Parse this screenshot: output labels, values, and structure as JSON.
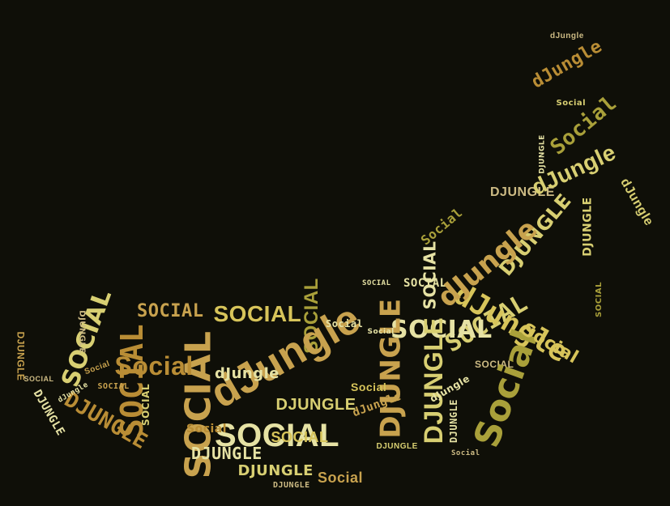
{
  "background": "#0f0f08",
  "palette": [
    "#c8a24e",
    "#d8cf72",
    "#e6e2a4",
    "#a9a03a",
    "#b98d35",
    "#d7c45a",
    "#8f9a2e",
    "#cdbb84"
  ],
  "words": [
    {
      "text": "SOCIAL",
      "size": 44,
      "rot": -90,
      "color": 0
    },
    {
      "text": "SOCIAL",
      "size": 40,
      "rot": 0,
      "color": 2
    },
    {
      "text": "SOCIAL",
      "size": 38,
      "rot": -90,
      "color": 4
    },
    {
      "text": "SOCIAL",
      "size": 30,
      "rot": -70,
      "color": 1
    },
    {
      "text": "SOCIAL",
      "size": 28,
      "rot": 0,
      "color": 5
    },
    {
      "text": "SOCIAL",
      "size": 30,
      "rot": -30,
      "color": 1
    },
    {
      "text": "SOCIAL",
      "size": 30,
      "rot": 0,
      "color": 2
    },
    {
      "text": "SOCIAL",
      "size": 24,
      "rot": -90,
      "color": 3
    },
    {
      "text": "SOCIAL",
      "size": 22,
      "rot": 0,
      "color": 0
    },
    {
      "text": "SOCIAL",
      "size": 20,
      "rot": -90,
      "color": 2
    },
    {
      "text": "SOCIAL",
      "size": 18,
      "rot": 0,
      "color": 5
    },
    {
      "text": "SOCIAL",
      "size": 14,
      "rot": 0,
      "color": 2
    },
    {
      "text": "SOCIAL",
      "size": 12,
      "rot": -90,
      "color": 1
    },
    {
      "text": "SOCIAL",
      "size": 12,
      "rot": 0,
      "color": 7
    },
    {
      "text": "SOCIAL",
      "size": 10,
      "rot": 0,
      "color": 0
    },
    {
      "text": "SOCIAL",
      "size": 10,
      "rot": -90,
      "color": 3
    },
    {
      "text": "SOCIAL",
      "size": 9,
      "rot": 0,
      "color": 7
    },
    {
      "text": "SOCIAL",
      "size": 9,
      "rot": 0,
      "color": 2
    },
    {
      "text": "DJUNGLE",
      "size": 34,
      "rot": -90,
      "color": 0
    },
    {
      "text": "DJUNGLE",
      "size": 32,
      "rot": -90,
      "color": 1
    },
    {
      "text": "DJUNGLE",
      "size": 26,
      "rot": 30,
      "color": 4
    },
    {
      "text": "DJUNGLE",
      "size": 24,
      "rot": -50,
      "color": 1
    },
    {
      "text": "DJUNGLE",
      "size": 20,
      "rot": 0,
      "color": 1
    },
    {
      "text": "DJUNGLE",
      "size": 20,
      "rot": 0,
      "color": 2
    },
    {
      "text": "DJUNGLE",
      "size": 18,
      "rot": 0,
      "color": 1
    },
    {
      "text": "DJUNGLE",
      "size": 16,
      "rot": 0,
      "color": 7
    },
    {
      "text": "DJUNGLE",
      "size": 14,
      "rot": 60,
      "color": 2
    },
    {
      "text": "DJUNGLE",
      "size": 14,
      "rot": -90,
      "color": 1
    },
    {
      "text": "DJUNGLE",
      "size": 12,
      "rot": 90,
      "color": 0
    },
    {
      "text": "DJUNGLE",
      "size": 12,
      "rot": -90,
      "color": 2
    },
    {
      "text": "DJUNGLE",
      "size": 10,
      "rot": 90,
      "color": 7
    },
    {
      "text": "DJUNGLE",
      "size": 10,
      "rot": 0,
      "color": 1
    },
    {
      "text": "DJUNGLE",
      "size": 10,
      "rot": 0,
      "color": 7
    },
    {
      "text": "DJUNGLE",
      "size": 9,
      "rot": -90,
      "color": 2
    },
    {
      "text": "dJungle",
      "size": 52,
      "rot": -30,
      "color": 0
    },
    {
      "text": "dJungle",
      "size": 36,
      "rot": 30,
      "color": 5
    },
    {
      "text": "dJungle",
      "size": 34,
      "rot": -40,
      "color": 0
    },
    {
      "text": "dJungle",
      "size": 28,
      "rot": -25,
      "color": 1
    },
    {
      "text": "dJungle",
      "size": 22,
      "rot": -30,
      "color": 4
    },
    {
      "text": "dJungle",
      "size": 18,
      "rot": 0,
      "color": 2
    },
    {
      "text": "dJungle",
      "size": 16,
      "rot": 60,
      "color": 1
    },
    {
      "text": "dJungle",
      "size": 14,
      "rot": -20,
      "color": 0
    },
    {
      "text": "dJungle",
      "size": 12,
      "rot": -30,
      "color": 2
    },
    {
      "text": "dJungle",
      "size": 10,
      "rot": 0,
      "color": 7
    },
    {
      "text": "dJungle",
      "size": 9,
      "rot": -30,
      "color": 2
    },
    {
      "text": "Social",
      "size": 44,
      "rot": -70,
      "color": 3
    },
    {
      "text": "Social",
      "size": 32,
      "rot": 0,
      "color": 4
    },
    {
      "text": "Social",
      "size": 26,
      "rot": -40,
      "color": 3
    },
    {
      "text": "Social",
      "size": 22,
      "rot": 30,
      "color": 5
    },
    {
      "text": "Social",
      "size": 18,
      "rot": 0,
      "color": 0
    },
    {
      "text": "Social",
      "size": 16,
      "rot": -40,
      "color": 3
    },
    {
      "text": "Social",
      "size": 14,
      "rot": 0,
      "color": 4
    },
    {
      "text": "Social",
      "size": 14,
      "rot": 0,
      "color": 5
    },
    {
      "text": "Social",
      "size": 12,
      "rot": 0,
      "color": 2
    },
    {
      "text": "Social",
      "size": 10,
      "rot": 0,
      "color": 1
    },
    {
      "text": "Social",
      "size": 10,
      "rot": -20,
      "color": 0
    },
    {
      "text": "Social",
      "size": 9,
      "rot": 0,
      "color": 7
    },
    {
      "text": "Social",
      "size": 9,
      "rot": 0,
      "color": 2
    }
  ]
}
